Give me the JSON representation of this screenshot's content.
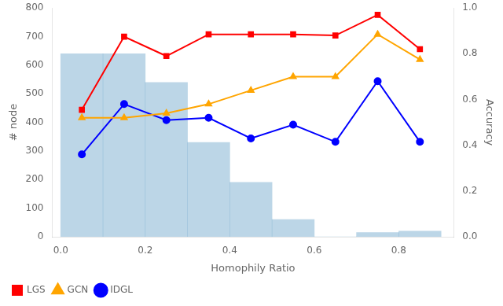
{
  "chart_data": {
    "type": "bar",
    "xlabel": "Homophily Ratio",
    "ylabel": "# node",
    "y2label": "Accuracy",
    "x": [
      0.05,
      0.15,
      0.25,
      0.35,
      0.45,
      0.55,
      0.65,
      0.75,
      0.85
    ],
    "xlim": [
      -0.02,
      0.93
    ],
    "xticks": [
      {
        "value": 0,
        "label": "0.0"
      },
      0.2,
      0.4,
      0.6,
      0.8
    ],
    "ylim": [
      0,
      800
    ],
    "yticks": [
      0,
      100,
      200,
      300,
      400,
      500,
      600,
      700,
      800
    ],
    "y2lim": [
      0,
      1
    ],
    "y2ticks": [
      {
        "value": 0,
        "label": "0.0"
      },
      0.2,
      0.4,
      0.6,
      0.8,
      {
        "value": 1,
        "label": "1.0"
      }
    ],
    "grid": false,
    "legend": "lower left",
    "series": [
      {
        "type": "bar",
        "color": "#7aadcf",
        "values": [
          640,
          640,
          540,
          330,
          190,
          60,
          0,
          15,
          20
        ]
      },
      {
        "name": "LGS",
        "type": "line",
        "axis": "y2",
        "color": "red",
        "marker": "square",
        "values": [
          0.555,
          0.875,
          0.79,
          0.885,
          0.885,
          0.885,
          0.88,
          0.97,
          0.82
        ]
      },
      {
        "name": "GCN",
        "type": "line",
        "axis": "y2",
        "color": "orange",
        "marker": "triangle",
        "values": [
          0.52,
          0.52,
          0.54,
          0.58,
          0.64,
          0.7,
          0.7,
          0.885,
          0.775
        ]
      },
      {
        "name": "IDGL",
        "type": "line",
        "axis": "y2",
        "color": "blue",
        "marker": "circle",
        "values": [
          0.36,
          0.58,
          0.51,
          0.52,
          0.43,
          0.49,
          0.415,
          0.68,
          0.415
        ]
      }
    ]
  }
}
